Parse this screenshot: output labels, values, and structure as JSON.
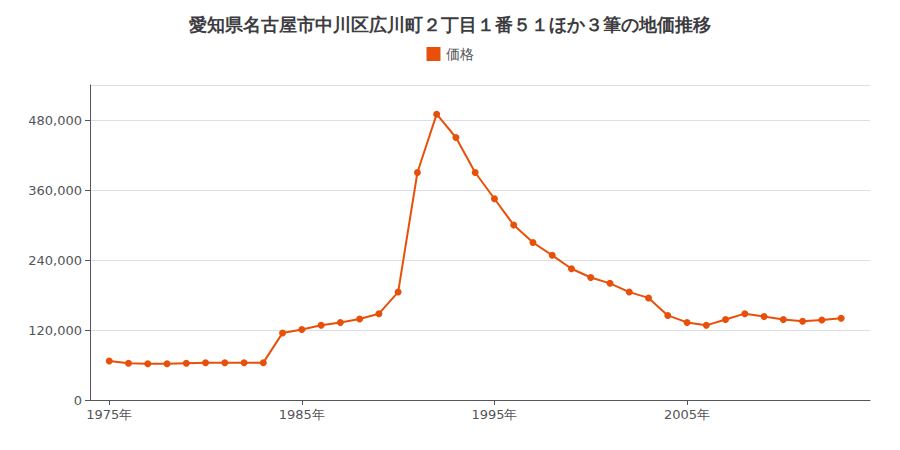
{
  "chart_data": {
    "type": "line",
    "title": "愛知県名古屋市中川区広川町２丁目１番５１ほか３筆の地価推移",
    "x": [
      1975,
      1976,
      1977,
      1978,
      1979,
      1980,
      1981,
      1982,
      1983,
      1984,
      1985,
      1986,
      1987,
      1988,
      1989,
      1990,
      1991,
      1992,
      1993,
      1994,
      1995,
      1996,
      1997,
      1998,
      1999,
      2000,
      2001,
      2002,
      2003,
      2004,
      2005,
      2006,
      2007,
      2008,
      2009,
      2010,
      2011,
      2012,
      2013
    ],
    "series": [
      {
        "name": "価格",
        "color": "#E8500A",
        "marker": "circle",
        "values": [
          67000,
          63000,
          62000,
          62000,
          63000,
          64000,
          64000,
          64000,
          64000,
          115000,
          121000,
          128000,
          133000,
          139000,
          148000,
          185000,
          390000,
          490000,
          450000,
          390000,
          345000,
          300000,
          270000,
          248000,
          225000,
          210000,
          200000,
          185000,
          175000,
          145000,
          133000,
          128000,
          138000,
          148000,
          143000,
          138000,
          135000,
          137000,
          140000
        ]
      }
    ],
    "xlim": [
      1974,
      2014.5
    ],
    "xticks": [
      {
        "value": 1975,
        "label": "1975年"
      },
      {
        "value": 1985,
        "label": "1985年"
      },
      {
        "value": 1995,
        "label": "1995年"
      },
      {
        "value": 2005,
        "label": "2005年"
      }
    ],
    "ylim": [
      0,
      540000
    ],
    "yticks": [
      0,
      {
        "value": 120000,
        "label": "120,000"
      },
      {
        "value": 240000,
        "label": "240,000"
      },
      {
        "value": 360000,
        "label": "360,000"
      },
      {
        "value": 480000,
        "label": "480,000"
      }
    ],
    "grid": true,
    "legend": "top"
  }
}
